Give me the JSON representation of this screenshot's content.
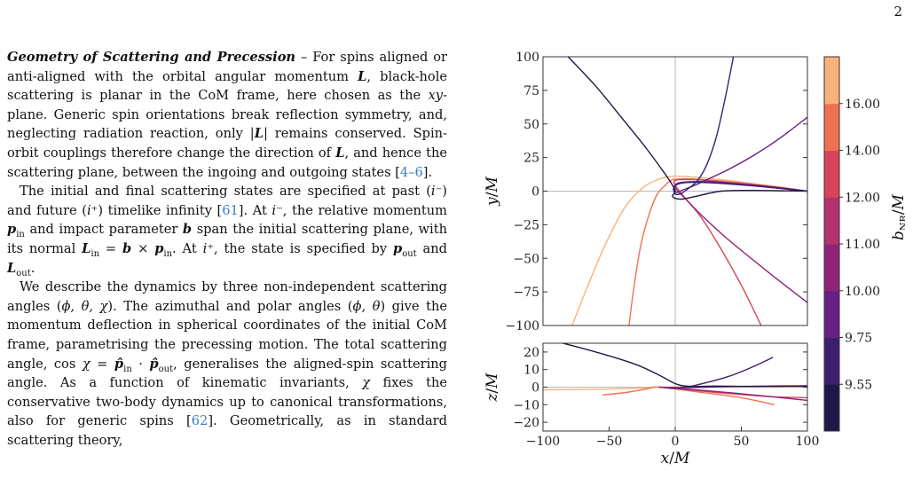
{
  "page_number": "2",
  "paragraphs": [
    {
      "title": "Geometry of Scattering and Precession",
      "runs": [
        {
          "t": " – For spins aligned or anti-aligned with the orbital angular momentum "
        },
        {
          "t": "L",
          "s": "bi"
        },
        {
          "t": ", black-hole scattering is planar in the CoM frame, here chosen as the "
        },
        {
          "t": "xy",
          "s": "i"
        },
        {
          "t": "-plane. Generic spin orientations break reflection symmetry, and, neglecting radiation reaction, only |"
        },
        {
          "t": "L",
          "s": "bi"
        },
        {
          "t": "| remains conserved. Spin-orbit couplings therefore change the direction of "
        },
        {
          "t": "L",
          "s": "bi"
        },
        {
          "t": ", and hence the scattering plane, between the ingoing and outgoing states ["
        },
        {
          "t": "4–6",
          "s": "cite"
        },
        {
          "t": "]."
        }
      ]
    },
    {
      "runs": [
        {
          "t": "The initial and final scattering states are specified at past ("
        },
        {
          "t": "i⁻",
          "s": "i"
        },
        {
          "t": ") and future ("
        },
        {
          "t": "i⁺",
          "s": "i"
        },
        {
          "t": ") timelike infinity ["
        },
        {
          "t": "61",
          "s": "cite"
        },
        {
          "t": "]. At "
        },
        {
          "t": "i⁻",
          "s": "i"
        },
        {
          "t": ", the relative momentum "
        },
        {
          "t": "p",
          "s": "bi"
        },
        {
          "t": "in",
          "s": "sub"
        },
        {
          "t": " and impact parameter "
        },
        {
          "t": "b",
          "s": "bi"
        },
        {
          "t": " span the initial scattering plane, with its normal "
        },
        {
          "t": "L",
          "s": "bi"
        },
        {
          "t": "in",
          "s": "sub"
        },
        {
          "t": " = "
        },
        {
          "t": "b",
          "s": "bi"
        },
        {
          "t": " × "
        },
        {
          "t": "p",
          "s": "bi"
        },
        {
          "t": "in",
          "s": "sub"
        },
        {
          "t": ". At "
        },
        {
          "t": "i⁺",
          "s": "i"
        },
        {
          "t": ", the state is specified by "
        },
        {
          "t": "p",
          "s": "bi"
        },
        {
          "t": "out",
          "s": "sub"
        },
        {
          "t": " and "
        },
        {
          "t": "L",
          "s": "bi"
        },
        {
          "t": "out",
          "s": "sub"
        },
        {
          "t": "."
        }
      ]
    },
    {
      "runs": [
        {
          "t": "We describe the dynamics by three non-independent scattering angles ("
        },
        {
          "t": "ϕ, θ, χ",
          "s": "i"
        },
        {
          "t": "). The azimuthal and polar angles ("
        },
        {
          "t": "ϕ, θ",
          "s": "i"
        },
        {
          "t": ") give the momentum deflection in spherical coordinates of the initial CoM frame, parametrising the precessing motion. The total scattering angle, cos "
        },
        {
          "t": "χ",
          "s": "i"
        },
        {
          "t": " = "
        },
        {
          "t": "p̂",
          "s": "bi"
        },
        {
          "t": "in",
          "s": "sub"
        },
        {
          "t": " · "
        },
        {
          "t": "p̂",
          "s": "bi"
        },
        {
          "t": "out",
          "s": "sub"
        },
        {
          "t": ", generalises the aligned-spin scattering angle. As a function of kinematic invariants, "
        },
        {
          "t": "χ",
          "s": "i"
        },
        {
          "t": " fixes the conservative two-body dynamics up to canonical transformations, also for generic spins ["
        },
        {
          "t": "62",
          "s": "cite"
        },
        {
          "t": "]. Geometrically, as in standard scattering theory,"
        }
      ]
    }
  ],
  "chart_data": [
    {
      "type": "line",
      "panel": "top",
      "xlim": [
        -100,
        100
      ],
      "ylim": [
        -100,
        100
      ],
      "ylabel": "y/M",
      "yticks": [
        100,
        75,
        50,
        25,
        0,
        -25,
        -50,
        -75,
        -100
      ],
      "ytick_labels": [
        "100",
        "75",
        "50",
        "25",
        "0",
        "−25",
        "−50",
        "−75",
        "−100"
      ],
      "series": [
        {
          "color": "#f9b27a",
          "x": [
            -78,
            -66,
            -52,
            -38,
            -24,
            -12,
            -3,
            6,
            20,
            40,
            60,
            80,
            100
          ],
          "y": [
            -100,
            -70,
            -38,
            -12,
            3,
            9,
            11,
            11,
            10,
            8,
            5.5,
            3,
            0
          ]
        },
        {
          "color": "#ef7151",
          "x": [
            -35,
            -31,
            -26,
            -20,
            -14,
            -8,
            -3,
            2,
            15,
            35,
            60,
            80,
            100
          ],
          "y": [
            -100,
            -70,
            -40,
            -18,
            -3,
            4,
            8,
            9,
            9,
            7.5,
            5,
            2.5,
            0
          ]
        },
        {
          "color": "#d8455a",
          "x": [
            65,
            50,
            34,
            20,
            10,
            4,
            1,
            -1,
            3,
            15,
            35,
            60,
            80,
            100
          ],
          "y": [
            -100,
            -70,
            -42,
            -20,
            -8,
            -1,
            3,
            7,
            8.5,
            8.5,
            7,
            4,
            2,
            0
          ]
        },
        {
          "color": "#8f2378",
          "x": [
            100,
            70,
            40,
            20,
            9,
            3,
            0,
            2,
            12,
            30,
            55,
            80,
            100
          ],
          "y": [
            -83,
            -60,
            -36,
            -18,
            -7,
            -1,
            3,
            6,
            7,
            7,
            5,
            2.5,
            0
          ]
        },
        {
          "color": "#682085",
          "x": [
            100,
            80,
            60,
            40,
            25,
            14,
            6,
            1,
            -1,
            3,
            12,
            30,
            55,
            80,
            100
          ],
          "y": [
            55,
            40,
            27,
            16,
            9,
            4,
            1,
            -1,
            3,
            6,
            7,
            6.5,
            4.5,
            2,
            0
          ]
        },
        {
          "color": "#3f1e72",
          "x": [
            44,
            38,
            31,
            24,
            17,
            10,
            4,
            0,
            -1,
            5,
            20,
            45,
            70,
            100
          ],
          "y": [
            100,
            70,
            40,
            20,
            8,
            2,
            -2,
            -2,
            3,
            6,
            6.5,
            5,
            3,
            0
          ]
        },
        {
          "color": "#1f1848",
          "x": [
            -81,
            -60,
            -40,
            -22,
            -10,
            -3,
            0,
            -2,
            4,
            15,
            35,
            60,
            85,
            100
          ],
          "y": [
            100,
            78,
            54,
            32,
            16,
            6,
            0,
            -4,
            -6,
            -4,
            0,
            0.5,
            0.2,
            0
          ]
        }
      ]
    },
    {
      "type": "line",
      "panel": "bottom",
      "xlim": [
        -100,
        100
      ],
      "ylim": [
        -25,
        25
      ],
      "xlabel": "x/M",
      "ylabel": "z/M",
      "xticks": [
        -100,
        -50,
        0,
        50,
        100
      ],
      "xtick_labels": [
        "−100",
        "−50",
        "0",
        "50",
        "100"
      ],
      "yticks": [
        20,
        10,
        0,
        -10,
        -20
      ],
      "ytick_labels": [
        "20",
        "10",
        "0",
        "−10",
        "−20"
      ],
      "series": [
        {
          "color": "#f9b27a",
          "x": [
            -100,
            -60,
            -30,
            -12,
            20,
            60,
            100
          ],
          "y": [
            -1.5,
            -1.2,
            -0.6,
            0,
            0.2,
            0.2,
            0
          ]
        },
        {
          "color": "#ef7151",
          "x": [
            -55,
            -35,
            -20,
            -12,
            20,
            50,
            75
          ],
          "y": [
            -4.5,
            -2.8,
            -0.8,
            0,
            -3,
            -6,
            -10
          ]
        },
        {
          "color": "#d8455a",
          "x": [
            -12,
            10,
            30,
            55,
            75,
            100
          ],
          "y": [
            0,
            -1.5,
            -3,
            -4.5,
            -5.5,
            -6
          ]
        },
        {
          "color": "#8f2378",
          "x": [
            -12,
            20,
            60,
            100
          ],
          "y": [
            0,
            -1.8,
            -4.5,
            -7.5
          ]
        },
        {
          "color": "#682085",
          "x": [
            -8,
            5,
            20,
            40,
            70,
            100
          ],
          "y": [
            -0.2,
            -0.3,
            -0.1,
            0.3,
            0.6,
            0.8
          ]
        },
        {
          "color": "#3f1e72",
          "x": [
            -5,
            5,
            15,
            40,
            60,
            74
          ],
          "y": [
            -0.6,
            -0.2,
            1,
            6,
            12,
            17
          ]
        },
        {
          "color": "#1f1848",
          "x": [
            -90,
            -60,
            -30,
            -10,
            0,
            10,
            30,
            60,
            100
          ],
          "y": [
            26,
            20,
            13,
            6,
            2,
            0.5,
            0.6,
            0.4,
            0.5
          ]
        }
      ]
    }
  ],
  "colorbar": {
    "label": "b_NR/M",
    "label_main": "b",
    "label_sub": "NR",
    "label_rest": "/M",
    "colors": [
      "#1f1848",
      "#3f1e72",
      "#682085",
      "#8f2378",
      "#b5316e",
      "#d8455a",
      "#ef7151",
      "#f9b27a"
    ],
    "tick_labels": [
      "9.55",
      "9.75",
      "10.00",
      "11.00",
      "12.00",
      "14.00",
      "16.00"
    ]
  }
}
